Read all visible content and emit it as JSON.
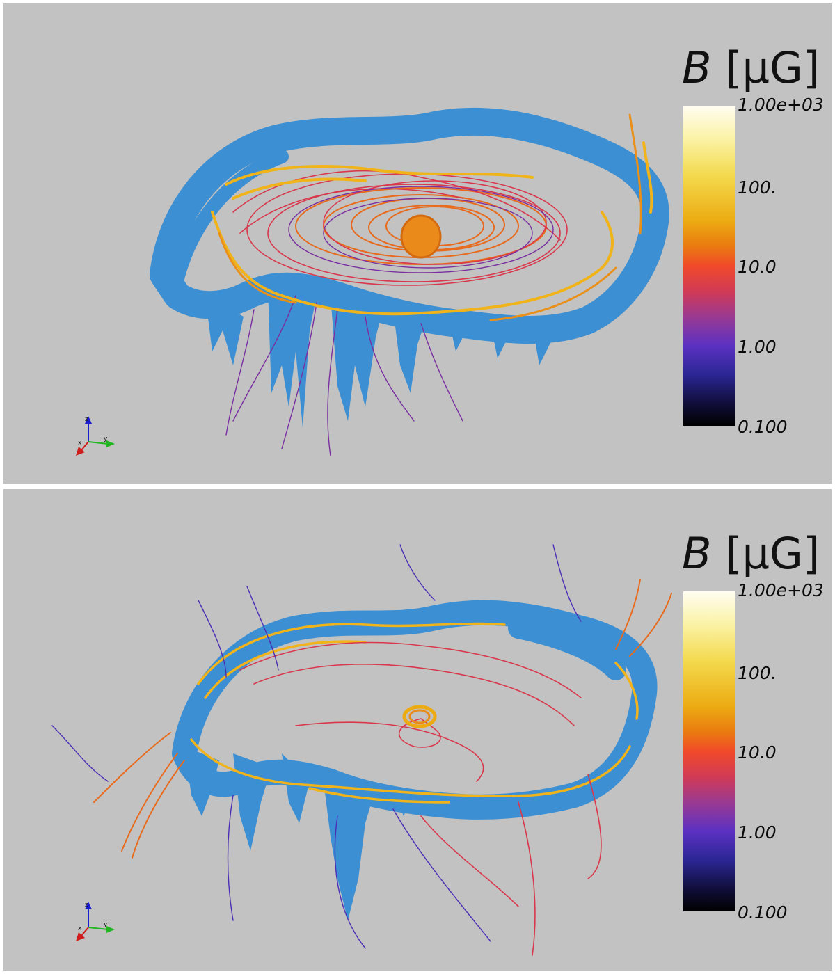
{
  "panels": [
    {
      "colorbar": {
        "symbol": "B",
        "unit": "[µG]",
        "ticks": [
          "1.00e+03",
          "100.",
          "10.0",
          "1.00",
          "0.100"
        ]
      },
      "axes": {
        "z": "z",
        "x": "x",
        "y": "y"
      }
    },
    {
      "colorbar": {
        "symbol": "B",
        "unit": "[µG]",
        "ticks": [
          "1.00e+03",
          "100.",
          "10.0",
          "1.00",
          "0.100"
        ]
      },
      "axes": {
        "z": "z",
        "x": "x",
        "y": "y"
      }
    }
  ],
  "colors": {
    "background": "#c2c2c2",
    "gas_surface": "#3c8fd2",
    "field_low": "#3a2aa8",
    "field_mid": "#f24a25",
    "field_high": "#f0b41a"
  }
}
